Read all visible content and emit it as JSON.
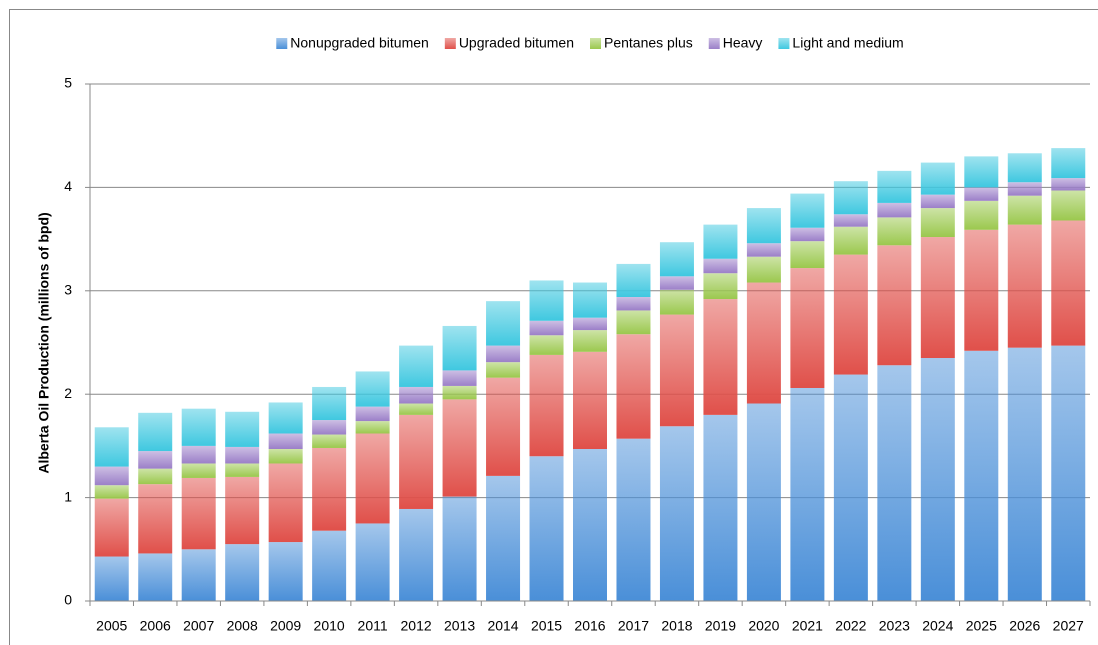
{
  "chart_data": {
    "type": "stacked_bar",
    "y_label": "Alberta Oil Production (millions of bpd)",
    "categories": [
      "2005",
      "2006",
      "2007",
      "2008",
      "2009",
      "2010",
      "2011",
      "2012",
      "2013",
      "2014",
      "2015",
      "2016",
      "2017",
      "2018",
      "2019",
      "2020",
      "2021",
      "2022",
      "2023",
      "2024",
      "2025",
      "2026",
      "2027"
    ],
    "series": [
      {
        "name": "Nonupgraded bitumen",
        "color": "#4a8fd8",
        "values": [
          0.43,
          0.46,
          0.5,
          0.55,
          0.57,
          0.68,
          0.75,
          0.89,
          1.01,
          1.21,
          1.4,
          1.47,
          1.57,
          1.69,
          1.8,
          1.91,
          2.06,
          2.19,
          2.28,
          2.35,
          2.42,
          2.45,
          2.47
        ]
      },
      {
        "name": "Upgraded bitumen",
        "color": "#e0504a",
        "values": [
          0.56,
          0.67,
          0.69,
          0.65,
          0.76,
          0.8,
          0.87,
          0.91,
          0.94,
          0.95,
          0.98,
          0.94,
          1.01,
          1.08,
          1.12,
          1.17,
          1.16,
          1.16,
          1.16,
          1.17,
          1.17,
          1.19,
          1.21
        ]
      },
      {
        "name": "Pentanes plus",
        "color": "#9bc84e",
        "values": [
          0.13,
          0.15,
          0.14,
          0.13,
          0.14,
          0.13,
          0.12,
          0.11,
          0.13,
          0.15,
          0.19,
          0.21,
          0.23,
          0.24,
          0.25,
          0.25,
          0.26,
          0.27,
          0.27,
          0.28,
          0.28,
          0.28,
          0.29
        ]
      },
      {
        "name": "Heavy",
        "color": "#9b7fc8",
        "values": [
          0.18,
          0.17,
          0.17,
          0.16,
          0.15,
          0.14,
          0.14,
          0.16,
          0.15,
          0.16,
          0.14,
          0.12,
          0.13,
          0.13,
          0.14,
          0.13,
          0.13,
          0.12,
          0.14,
          0.13,
          0.13,
          0.13,
          0.12
        ]
      },
      {
        "name": "Light and medium",
        "color": "#3fc8e0",
        "values": [
          0.38,
          0.37,
          0.36,
          0.34,
          0.3,
          0.32,
          0.34,
          0.4,
          0.43,
          0.43,
          0.39,
          0.34,
          0.32,
          0.33,
          0.33,
          0.34,
          0.33,
          0.32,
          0.31,
          0.31,
          0.3,
          0.28,
          0.29
        ]
      }
    ],
    "ylim": [
      0,
      5
    ],
    "yticks": [
      0,
      1,
      2,
      3,
      4,
      5
    ],
    "grid": true,
    "legend": "top"
  }
}
